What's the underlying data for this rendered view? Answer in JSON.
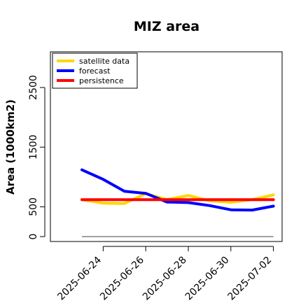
{
  "chart_data": {
    "type": "line",
    "title": "MIZ area",
    "ylabel": "Area (1000km2)",
    "xlabel": "",
    "ylim": [
      -60,
      3200
    ],
    "yticks": [
      0,
      500,
      1500,
      2500
    ],
    "x": [
      "2025-06-23",
      "2025-06-24",
      "2025-06-25",
      "2025-06-26",
      "2025-06-27",
      "2025-06-28",
      "2025-06-29",
      "2025-06-30",
      "2025-07-01",
      "2025-07-02"
    ],
    "xticks": [
      "2025-06-24",
      "2025-06-26",
      "2025-06-28",
      "2025-06-30",
      "2025-07-02"
    ],
    "highlight_tick": "2025-06-24",
    "highlight_color": "#228b22",
    "legend_position": "top-left",
    "grid": false,
    "series": [
      {
        "name": "satellite data",
        "color": "#ffd700",
        "values": [
          620,
          560,
          555,
          720,
          620,
          690,
          600,
          575,
          620,
          700
        ]
      },
      {
        "name": "forecast",
        "color": "#0000ff",
        "values": [
          1120,
          960,
          760,
          725,
          580,
          570,
          520,
          450,
          445,
          510
        ]
      },
      {
        "name": "persistence",
        "color": "#ff0000",
        "values": [
          620,
          620,
          620,
          620,
          620,
          620,
          620,
          620,
          620,
          620
        ]
      }
    ],
    "reference_line": {
      "value": 0,
      "color": "#808080"
    }
  }
}
